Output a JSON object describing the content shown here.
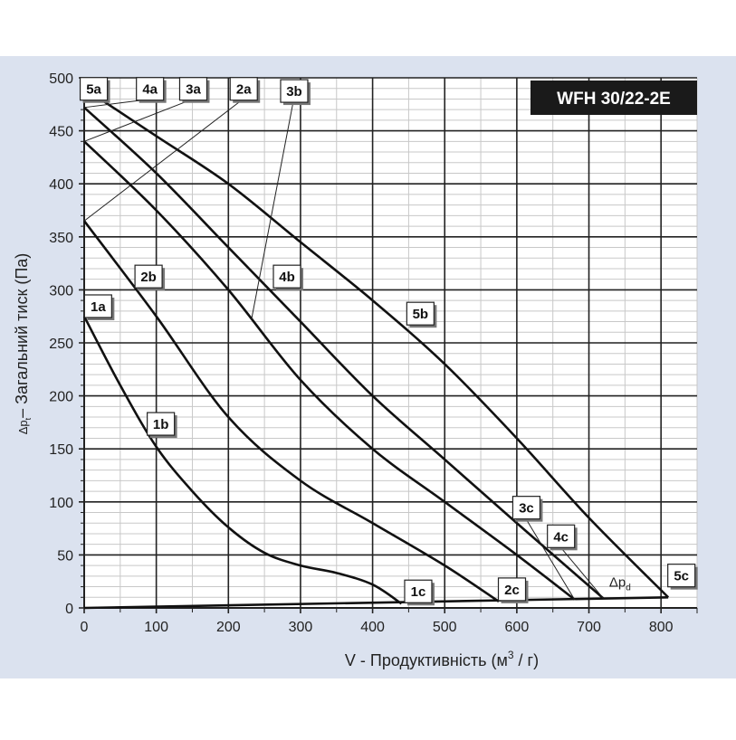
{
  "chart_data": {
    "type": "line",
    "title": "WFH 30/22-2E",
    "xlabel": "V - Продуктивність (м³ / г)",
    "xlabel_main": "V - Продуктивність (м",
    "xlabel_sup": "3",
    "xlabel_end": " / г)",
    "ylabel_symbol": "Δp",
    "ylabel_sub": "t",
    "ylabel": "– Загальний тиск (Па)",
    "xlim": [
      0,
      850
    ],
    "ylim": [
      0,
      500
    ],
    "xticks": [
      0,
      100,
      200,
      300,
      400,
      500,
      600,
      700,
      800
    ],
    "yticks": [
      0,
      50,
      100,
      150,
      200,
      250,
      300,
      350,
      400,
      450,
      500
    ],
    "grid": true,
    "series": [
      {
        "name": "1",
        "labels": [
          "1a",
          "1b",
          "1c"
        ],
        "x": [
          0,
          50,
          100,
          150,
          200,
          250,
          300,
          350,
          400,
          440
        ],
        "y": [
          275,
          210,
          152,
          110,
          76,
          52,
          40,
          33,
          22,
          4
        ]
      },
      {
        "name": "2",
        "labels": [
          "2a",
          "2b",
          "2c"
        ],
        "x": [
          0,
          100,
          200,
          300,
          400,
          500,
          575
        ],
        "y": [
          365,
          275,
          180,
          120,
          80,
          40,
          6
        ]
      },
      {
        "name": "3",
        "labels": [
          "3a",
          "3b",
          "3c"
        ],
        "x": [
          0,
          100,
          200,
          300,
          400,
          500,
          600,
          680
        ],
        "y": [
          440,
          375,
          300,
          215,
          150,
          100,
          50,
          8
        ]
      },
      {
        "name": "4",
        "labels": [
          "4a",
          "4b",
          "4c"
        ],
        "x": [
          0,
          100,
          200,
          300,
          400,
          500,
          600,
          720
        ],
        "y": [
          472,
          410,
          340,
          270,
          200,
          140,
          80,
          9
        ]
      },
      {
        "name": "5",
        "labels": [
          "5a",
          "5b",
          "5c"
        ],
        "x": [
          0,
          100,
          200,
          300,
          400,
          500,
          600,
          700,
          810
        ],
        "y": [
          490,
          445,
          400,
          345,
          290,
          230,
          160,
          85,
          10
        ]
      },
      {
        "name": "Δpd",
        "labels": [
          "Δp",
          "d"
        ],
        "x": [
          0,
          810
        ],
        "y": [
          0,
          10
        ]
      }
    ]
  }
}
